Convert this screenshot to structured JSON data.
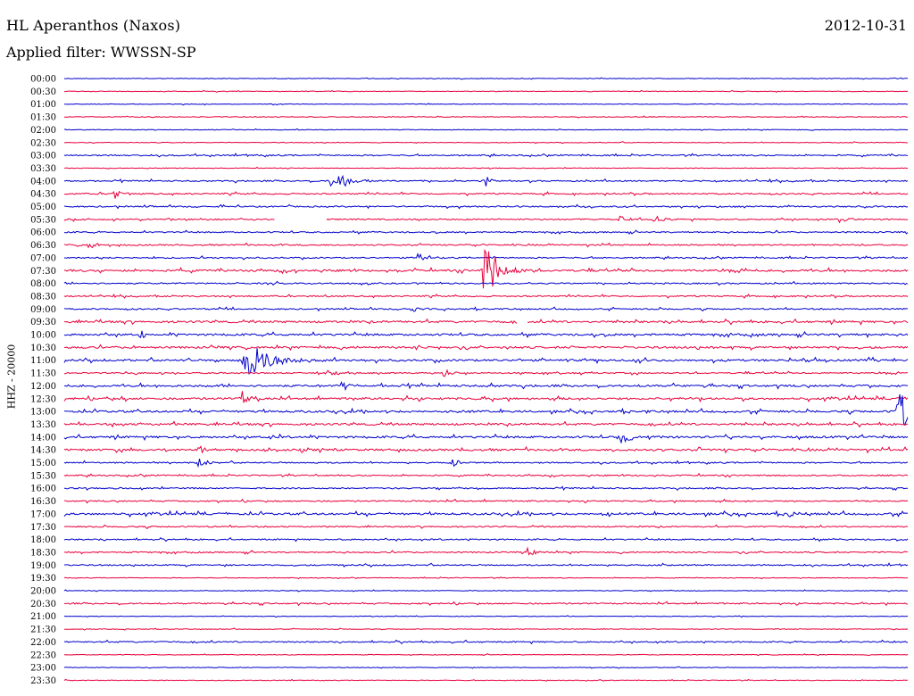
{
  "header": {
    "station": "HL Aperanthos (Naxos)",
    "date": "2012-10-31",
    "filter": "Applied filter: WWSSN-SP",
    "channel_label": "HHZ - 20000"
  },
  "colors": {
    "trace_a": "#0000cc",
    "trace_b": "#e8003c",
    "background": "#ffffff",
    "text": "#000000"
  },
  "chart_data": {
    "type": "line",
    "title": "HL Aperanthos (Naxos)",
    "subtitle": "Applied filter: WWSSN-SP",
    "ylabel": "HHZ - 20000",
    "xlabel": "",
    "grid": false,
    "legend": "none",
    "row_labels": [
      "00:00",
      "00:30",
      "01:00",
      "01:30",
      "02:00",
      "02:30",
      "03:00",
      "03:30",
      "04:00",
      "04:30",
      "05:00",
      "05:30",
      "06:00",
      "06:30",
      "07:00",
      "07:30",
      "08:00",
      "08:30",
      "09:00",
      "09:30",
      "10:00",
      "10:30",
      "11:00",
      "11:30",
      "12:00",
      "12:30",
      "13:00",
      "13:30",
      "14:00",
      "14:30",
      "15:00",
      "15:30",
      "16:00",
      "16:30",
      "17:00",
      "17:30",
      "18:00",
      "18:30",
      "19:00",
      "19:30",
      "20:00",
      "20:30",
      "21:00",
      "21:30",
      "22:00",
      "22:30",
      "23:00",
      "23:30"
    ],
    "row_colors": [
      "b",
      "r",
      "b",
      "r",
      "b",
      "r",
      "b",
      "r",
      "b",
      "r",
      "b",
      "r",
      "b",
      "r",
      "b",
      "r",
      "b",
      "r",
      "b",
      "r",
      "b",
      "r",
      "b",
      "r",
      "b",
      "r",
      "b",
      "r",
      "b",
      "r",
      "b",
      "r",
      "b",
      "r",
      "b",
      "r",
      "b",
      "r",
      "b",
      "r",
      "b",
      "r",
      "b",
      "r",
      "b",
      "r",
      "b",
      "r"
    ],
    "noise_level": [
      1,
      1,
      1,
      1,
      1,
      1,
      2,
      1,
      2,
      2,
      2,
      2,
      2,
      2,
      2,
      3,
      2,
      2,
      2,
      3,
      3,
      3,
      3,
      2,
      3,
      3,
      3,
      3,
      3,
      3,
      2,
      2,
      2,
      2,
      3,
      2,
      2,
      2,
      2,
      1,
      1,
      2,
      1,
      1,
      2,
      1,
      1,
      1
    ],
    "row_time_fraction_max": 1.0,
    "events": [
      {
        "row": 8,
        "t": 0.32,
        "amp": 1.0,
        "width": 0.01
      },
      {
        "row": 8,
        "t": 0.5,
        "amp": 0.5,
        "width": 0.005
      },
      {
        "row": 9,
        "t": 0.06,
        "amp": 0.6,
        "width": 0.004
      },
      {
        "row": 11,
        "t": 0.66,
        "amp": 0.5,
        "width": 0.004
      },
      {
        "row": 11,
        "t": 0.7,
        "amp": 0.6,
        "width": 0.004
      },
      {
        "row": 11,
        "t": 0.92,
        "amp": 0.7,
        "width": 0.004
      },
      {
        "row": 13,
        "t": 0.03,
        "amp": 0.6,
        "width": 0.004
      },
      {
        "row": 14,
        "t": 0.42,
        "amp": 0.6,
        "width": 0.006
      },
      {
        "row": 15,
        "t": 0.5,
        "amp": 2.6,
        "width": 0.01
      },
      {
        "row": 18,
        "t": 0.41,
        "amp": 0.4,
        "width": 0.005
      },
      {
        "row": 20,
        "t": 0.09,
        "amp": 0.5,
        "width": 0.004
      },
      {
        "row": 22,
        "t": 0.22,
        "amp": 1.6,
        "width": 0.016
      },
      {
        "row": 23,
        "t": 0.31,
        "amp": 0.6,
        "width": 0.004
      },
      {
        "row": 23,
        "t": 0.45,
        "amp": 0.6,
        "width": 0.004
      },
      {
        "row": 24,
        "t": 0.33,
        "amp": 0.5,
        "width": 0.004
      },
      {
        "row": 25,
        "t": 0.21,
        "amp": 0.7,
        "width": 0.004
      },
      {
        "row": 26,
        "t": 0.99,
        "amp": 2.0,
        "width": 0.01
      },
      {
        "row": 28,
        "t": 0.66,
        "amp": 0.5,
        "width": 0.01
      },
      {
        "row": 29,
        "t": 0.16,
        "amp": 0.5,
        "width": 0.004
      },
      {
        "row": 30,
        "t": 0.16,
        "amp": 0.4,
        "width": 0.006
      },
      {
        "row": 30,
        "t": 0.46,
        "amp": 0.4,
        "width": 0.004
      },
      {
        "row": 34,
        "t": 0.64,
        "amp": 0.4,
        "width": 0.004
      },
      {
        "row": 34,
        "t": 0.86,
        "amp": 0.4,
        "width": 0.004
      },
      {
        "row": 37,
        "t": 0.55,
        "amp": 0.4,
        "width": 0.004
      }
    ],
    "gaps": [
      {
        "row": 11,
        "t_start": 0.25,
        "t_end": 0.31
      },
      {
        "row": 19,
        "t_start": 0.538,
        "t_end": 0.548
      }
    ]
  }
}
